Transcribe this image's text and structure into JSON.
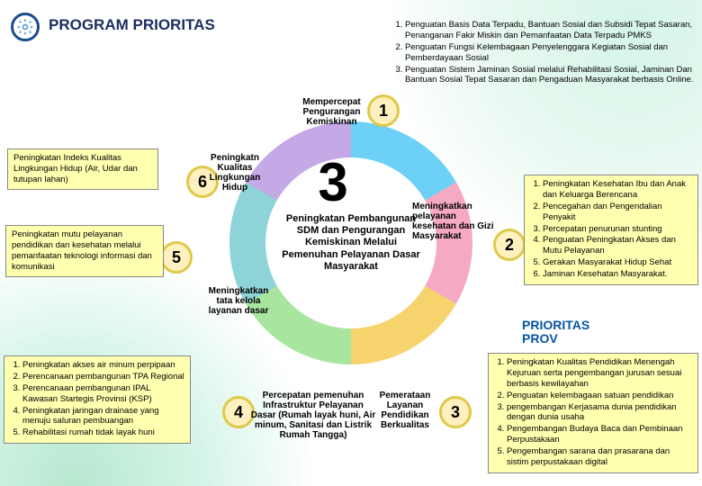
{
  "header": {
    "title": "PROGRAM PRIORITAS",
    "icon_name": "gear-icon"
  },
  "center": {
    "big_number": "3",
    "text": "Peningkatan Pembangunan SDM dan Pengurangan Kemiskinan Melalui Pemenuhan Pelayanan Dasar Masyarakat"
  },
  "segments": {
    "s1": {
      "num": "1",
      "label": "Mempercepat Pengurangan Kemiskinan"
    },
    "s2": {
      "num": "2",
      "label": "Meningkatkan pelayanan kesehatan dan Gizi Masyarakat"
    },
    "s3": {
      "num": "3",
      "label": "Pemerataan Layanan Pendidikan Berkualitas"
    },
    "s4": {
      "num": "4",
      "label": "Percepatan pemenuhan Infrastruktur Pelayanan Dasar (Rumah layak huni, Air minum, Sanitasi dan Listrik Rumah Tangga)"
    },
    "s5": {
      "num": "5",
      "label": "Meningkatkan tata kelola layanan dasar"
    },
    "s6": {
      "num": "6",
      "label": "Peningkatn Kualitas Lingkungan Hidup"
    }
  },
  "left_boxes": {
    "b6": "Peningkatan Indeks Kualitas Lingkungan Hidup (Air, Udar dan tutupan lahan)",
    "b5": "Peningkatan mutu pelayanan pendidikan dan kesehatan melalui pemanfaatan teknologi informasi dan komunikasi",
    "b4_items": [
      "Peningkatan akses air minum perpipaan",
      "Perencanaan pembangunan TPA Regional",
      "Perencanaan pembangunan IPAL Kawasan Startegis Provinsi (KSP)",
      "Peningkatan jaringan drainase yang menuju saluran pembuangan",
      "Rehabilitasi rumah tidak layak huni"
    ]
  },
  "right_boxes": {
    "b1_items": [
      "Penguatan Basis Data Terpadu, Bantuan Sosial dan Subsidi Tepat Sasaran, Penanganan Fakir Miskin dan Pemanfaatan Data Terpadu PMKS",
      "Penguatan Fungsi Kelembagaan Penyelenggara Kegiatan Sosial dan Pemberdayaan Sosial",
      "Penguatan Sistem Jaminan Sosial melalui Rehabilitasi Sosial, Jaminan Dan Bantuan Sosial Tepat Sasaran dan Pengaduan Masyarakat berbasis Online."
    ],
    "b2_items": [
      "Peningkatan Kesehatan Ibu dan Anak dan Keluarga Berencana",
      "Pencegahan dan Pengendalian Penyakit",
      "Percepatan penurunan stunting",
      "Penguatan Peningkatan Akses dan Mutu Pelayanan",
      "Gerakan Masyarakat Hidup Sehat",
      "Jaminan Kesehatan Masyarakat."
    ],
    "prov_title": "PRIORITAS PROV",
    "b3_items": [
      "Peningkatan Kualitas Pendidikan Menengah Kejuruan serta pengembangan jurusan sesuai berbasis kewilayahan",
      "Penguatan kelembagaan satuan pendidikan",
      "pengembangan Kerjasama dunia pendidikan dengan dunia usaha",
      "Pengembangan Budaya Baca dan Pembinaan Perpustakaan",
      "Pengembangan sarana dan prasarana dan sistim perpustakaan digital"
    ]
  },
  "colors": {
    "seg1": "#6dd0f7",
    "seg2": "#f5a9c5",
    "seg3": "#f7d36d",
    "seg4": "#a8e6a0",
    "seg5": "#8dd3d8",
    "seg6": "#c5a8e6",
    "node_fill": "#fff0c0",
    "node_border": "#e0c848",
    "box_bg": "#ffffb0",
    "header_text": "#1a2d5e"
  }
}
